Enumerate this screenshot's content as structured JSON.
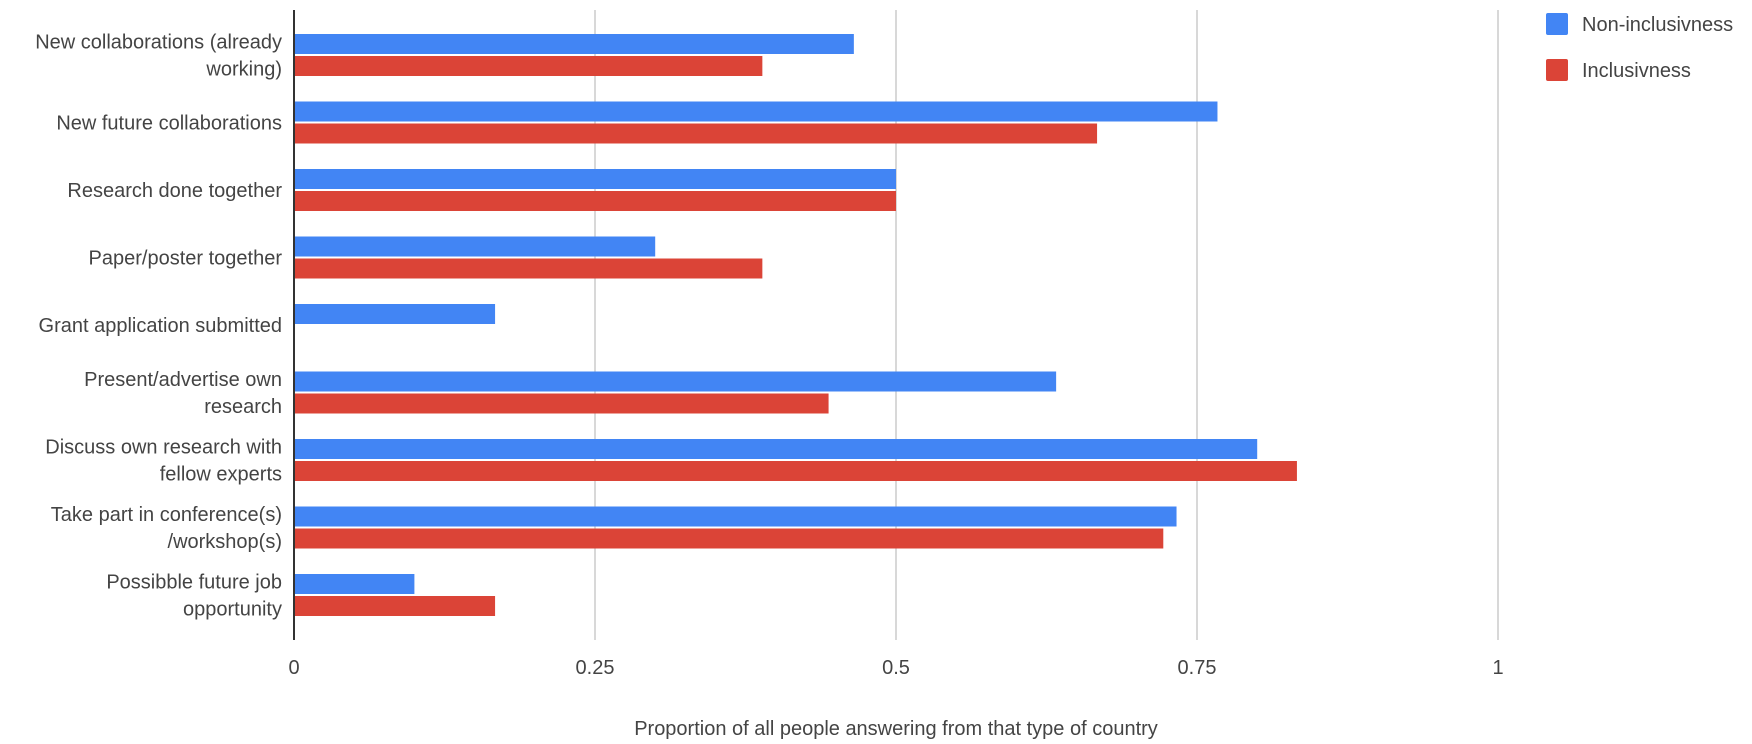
{
  "chart_data": {
    "type": "bar",
    "orientation": "horizontal",
    "categories": [
      [
        "New collaborations (already",
        "working)"
      ],
      [
        "New future collaborations"
      ],
      [
        "Research done together"
      ],
      [
        "Paper/poster together"
      ],
      [
        "Grant application submitted"
      ],
      [
        "Present/advertise own",
        "research"
      ],
      [
        "Discuss own research with",
        "fellow experts"
      ],
      [
        "Take part in conference(s)",
        "/workshop(s)"
      ],
      [
        "Possibble future job",
        "opportunity"
      ]
    ],
    "series": [
      {
        "name": "Non-inclusivness",
        "color": "#4285f4",
        "values": [
          0.465,
          0.767,
          0.5,
          0.3,
          0.167,
          0.633,
          0.8,
          0.733,
          0.1
        ]
      },
      {
        "name": "Inclusivness",
        "color": "#db4437",
        "values": [
          0.389,
          0.667,
          0.5,
          0.389,
          0,
          0.444,
          0.833,
          0.722,
          0.167
        ]
      }
    ],
    "xlim": [
      0,
      1
    ],
    "xticks": [
      0,
      0.25,
      0.5,
      0.75,
      1
    ],
    "xtick_labels": [
      "0",
      "0.25",
      "0.5",
      "0.75",
      "1"
    ],
    "xlabel": "Proportion of all people answering from that type of country",
    "ylabel": "",
    "title": "",
    "grid": true,
    "legend_position": "top-right"
  }
}
